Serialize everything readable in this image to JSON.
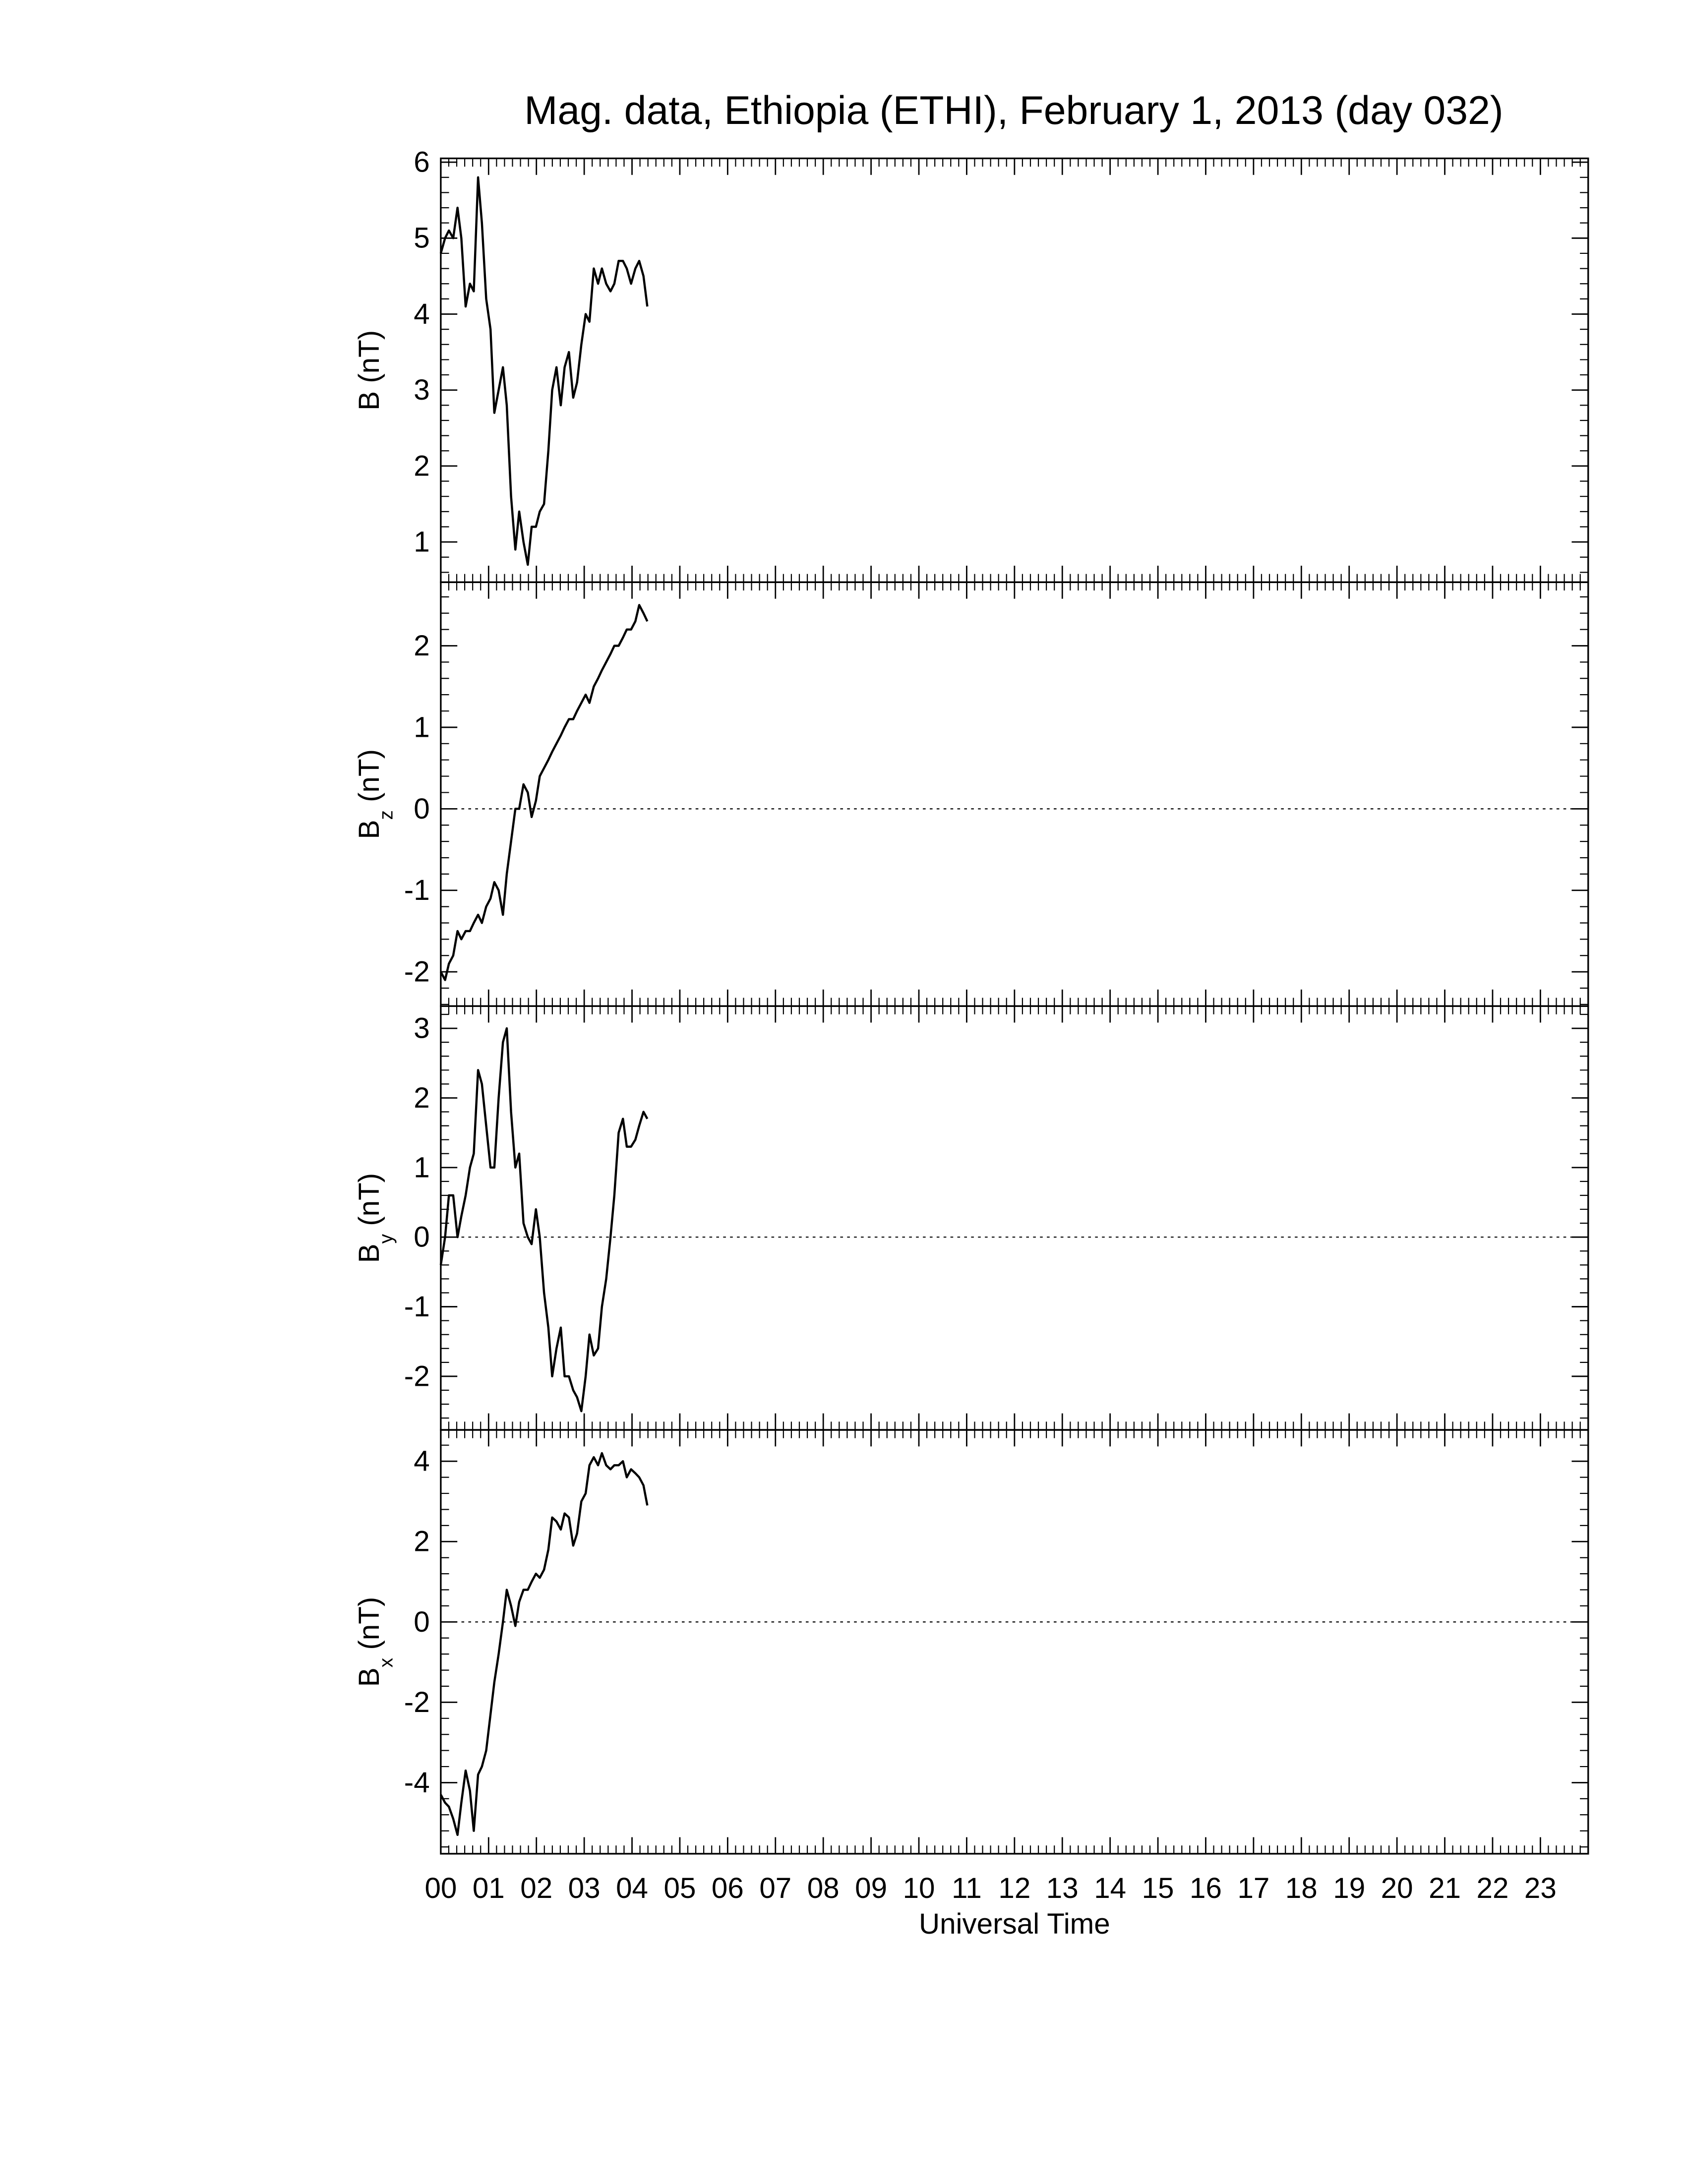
{
  "chart_data": [
    {
      "type": "line",
      "title": "Mag. data, Ethiopia (ETHI), February 1, 2013 (day 032)",
      "ylabel": [
        {
          "text": "B (nT)"
        }
      ],
      "xlim": [
        0,
        24
      ],
      "ylim": [
        0.47,
        6.05
      ],
      "yticks": [
        1,
        2,
        3,
        4,
        5,
        6
      ],
      "zero_line": false,
      "x": [
        0,
        0.09,
        0.17,
        0.26,
        0.35,
        0.43,
        0.52,
        0.61,
        0.69,
        0.78,
        0.86,
        0.95,
        1.04,
        1.12,
        1.21,
        1.3,
        1.38,
        1.47,
        1.56,
        1.64,
        1.73,
        1.82,
        1.9,
        1.99,
        2.07,
        2.16,
        2.25,
        2.33,
        2.42,
        2.51,
        2.59,
        2.68,
        2.77,
        2.85,
        2.94,
        3.03,
        3.11,
        3.2,
        3.29,
        3.37,
        3.46,
        3.55,
        3.63,
        3.72,
        3.81,
        3.89,
        3.98,
        4.07,
        4.15,
        4.24,
        4.32
      ],
      "series": [
        {
          "color": "#000000",
          "values": [
            4.8,
            5.0,
            5.1,
            5.0,
            5.4,
            5.0,
            4.1,
            4.4,
            4.3,
            5.8,
            5.2,
            4.2,
            3.8,
            2.7,
            3.0,
            3.3,
            2.8,
            1.6,
            0.9,
            1.4,
            1.0,
            0.7,
            1.2,
            1.2,
            1.4,
            1.5,
            2.2,
            3.0,
            3.3,
            2.8,
            3.3,
            3.5,
            2.9,
            3.1,
            3.6,
            4.0,
            3.9,
            4.6,
            4.4,
            4.6,
            4.4,
            4.3,
            4.4,
            4.7,
            4.7,
            4.6,
            4.4,
            4.6,
            4.7,
            4.5,
            4.1
          ]
        }
      ]
    },
    {
      "type": "line",
      "ylabel": [
        {
          "text": "B"
        },
        {
          "text": "z",
          "sub": true
        },
        {
          "text": " (nT)"
        }
      ],
      "xlim": [
        0,
        24
      ],
      "ylim": [
        -2.42,
        2.78
      ],
      "yticks": [
        -2,
        -1,
        0,
        1,
        2
      ],
      "zero_line": true,
      "x": [
        0,
        0.09,
        0.17,
        0.26,
        0.35,
        0.43,
        0.52,
        0.61,
        0.69,
        0.78,
        0.86,
        0.95,
        1.04,
        1.12,
        1.21,
        1.3,
        1.38,
        1.47,
        1.56,
        1.64,
        1.73,
        1.82,
        1.9,
        1.99,
        2.07,
        2.16,
        2.25,
        2.33,
        2.42,
        2.51,
        2.59,
        2.68,
        2.77,
        2.85,
        2.94,
        3.03,
        3.11,
        3.2,
        3.29,
        3.37,
        3.46,
        3.55,
        3.63,
        3.72,
        3.81,
        3.89,
        3.98,
        4.07,
        4.15,
        4.24,
        4.32
      ],
      "series": [
        {
          "color": "#000000",
          "values": [
            -2.0,
            -2.1,
            -1.9,
            -1.8,
            -1.5,
            -1.6,
            -1.5,
            -1.5,
            -1.4,
            -1.3,
            -1.4,
            -1.2,
            -1.1,
            -0.9,
            -1.0,
            -1.3,
            -0.8,
            -0.4,
            0.0,
            0.0,
            0.3,
            0.2,
            -0.1,
            0.1,
            0.4,
            0.5,
            0.6,
            0.7,
            0.8,
            0.9,
            1.0,
            1.1,
            1.1,
            1.2,
            1.3,
            1.4,
            1.3,
            1.5,
            1.6,
            1.7,
            1.8,
            1.9,
            2.0,
            2.0,
            2.1,
            2.2,
            2.2,
            2.3,
            2.5,
            2.4,
            2.3
          ]
        }
      ]
    },
    {
      "type": "line",
      "ylabel": [
        {
          "text": "B"
        },
        {
          "text": "y",
          "sub": true
        },
        {
          "text": " (nT)"
        }
      ],
      "xlim": [
        0,
        24
      ],
      "ylim": [
        -2.77,
        3.32
      ],
      "yticks": [
        -2,
        -1,
        0,
        1,
        2,
        3
      ],
      "zero_line": true,
      "x": [
        0,
        0.09,
        0.17,
        0.26,
        0.35,
        0.43,
        0.52,
        0.61,
        0.69,
        0.78,
        0.86,
        0.95,
        1.04,
        1.12,
        1.21,
        1.3,
        1.38,
        1.47,
        1.56,
        1.64,
        1.73,
        1.82,
        1.9,
        1.99,
        2.07,
        2.16,
        2.25,
        2.33,
        2.42,
        2.51,
        2.59,
        2.68,
        2.77,
        2.85,
        2.94,
        3.03,
        3.11,
        3.2,
        3.29,
        3.37,
        3.46,
        3.55,
        3.63,
        3.72,
        3.81,
        3.89,
        3.98,
        4.07,
        4.15,
        4.24,
        4.32
      ],
      "series": [
        {
          "color": "#000000",
          "values": [
            -0.4,
            0.0,
            0.6,
            0.6,
            0.0,
            0.3,
            0.6,
            1.0,
            1.2,
            2.4,
            2.2,
            1.6,
            1.0,
            1.0,
            2.0,
            2.8,
            3.0,
            1.8,
            1.0,
            1.2,
            0.2,
            0.0,
            -0.1,
            0.4,
            0.0,
            -0.8,
            -1.3,
            -2.0,
            -1.6,
            -1.3,
            -2.0,
            -2.0,
            -2.2,
            -2.3,
            -2.5,
            -2.0,
            -1.4,
            -1.7,
            -1.6,
            -1.0,
            -0.6,
            0.0,
            0.6,
            1.5,
            1.7,
            1.3,
            1.3,
            1.4,
            1.6,
            1.8,
            1.7
          ]
        }
      ]
    },
    {
      "type": "line",
      "ylabel": [
        {
          "text": "B"
        },
        {
          "text": "x",
          "sub": true
        },
        {
          "text": " (nT)"
        }
      ],
      "xlabel": "Universal Time",
      "xlim": [
        0,
        24
      ],
      "ylim": [
        -5.77,
        4.78
      ],
      "yticks": [
        -4,
        -2,
        0,
        2,
        4
      ],
      "zero_line": true,
      "xticks": [
        {
          "value": 0,
          "label": "00"
        },
        {
          "value": 1,
          "label": "01"
        },
        {
          "value": 2,
          "label": "02"
        },
        {
          "value": 3,
          "label": "03"
        },
        {
          "value": 4,
          "label": "04"
        },
        {
          "value": 5,
          "label": "05"
        },
        {
          "value": 6,
          "label": "06"
        },
        {
          "value": 7,
          "label": "07"
        },
        {
          "value": 8,
          "label": "08"
        },
        {
          "value": 9,
          "label": "09"
        },
        10,
        11,
        12,
        13,
        14,
        15,
        16,
        17,
        18,
        19,
        20,
        21,
        22,
        23
      ],
      "x": [
        0,
        0.09,
        0.17,
        0.26,
        0.35,
        0.43,
        0.52,
        0.61,
        0.69,
        0.78,
        0.86,
        0.95,
        1.04,
        1.12,
        1.21,
        1.3,
        1.38,
        1.47,
        1.56,
        1.64,
        1.73,
        1.82,
        1.9,
        1.99,
        2.07,
        2.16,
        2.25,
        2.33,
        2.42,
        2.51,
        2.59,
        2.68,
        2.77,
        2.85,
        2.94,
        3.03,
        3.11,
        3.2,
        3.29,
        3.37,
        3.46,
        3.55,
        3.63,
        3.72,
        3.81,
        3.89,
        3.98,
        4.07,
        4.15,
        4.24,
        4.32
      ],
      "series": [
        {
          "color": "#000000",
          "values": [
            -4.3,
            -4.5,
            -4.6,
            -4.9,
            -5.3,
            -4.5,
            -3.7,
            -4.2,
            -5.2,
            -3.8,
            -3.6,
            -3.2,
            -2.3,
            -1.5,
            -0.8,
            0.0,
            0.8,
            0.4,
            -0.1,
            0.5,
            0.8,
            0.8,
            1.0,
            1.2,
            1.1,
            1.3,
            1.8,
            2.6,
            2.5,
            2.3,
            2.7,
            2.6,
            1.9,
            2.2,
            3.0,
            3.2,
            3.9,
            4.1,
            3.9,
            4.2,
            3.9,
            3.8,
            3.9,
            3.9,
            4.0,
            3.6,
            3.8,
            3.7,
            3.6,
            3.4,
            2.9
          ]
        }
      ]
    }
  ]
}
